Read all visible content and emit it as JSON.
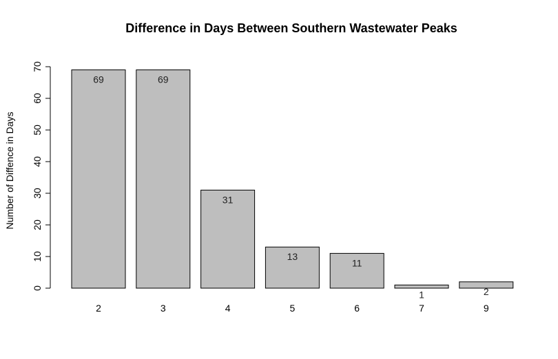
{
  "chart_data": {
    "type": "bar",
    "title": "Difference in Days Between Southern Wastewater Peaks",
    "xlabel": "",
    "ylabel": "Number of Diffence in Days",
    "categories": [
      "2",
      "3",
      "4",
      "5",
      "6",
      "7",
      "9"
    ],
    "values": [
      69,
      69,
      31,
      13,
      11,
      1,
      2
    ],
    "data_labels": [
      "69",
      "69",
      "31",
      "13",
      "11",
      "1",
      "2"
    ],
    "ylim": [
      0,
      70
    ],
    "yticks": [
      0,
      10,
      20,
      30,
      40,
      50,
      60,
      70
    ],
    "bar_color": "#bebebe",
    "grid": false,
    "legend": "none"
  }
}
